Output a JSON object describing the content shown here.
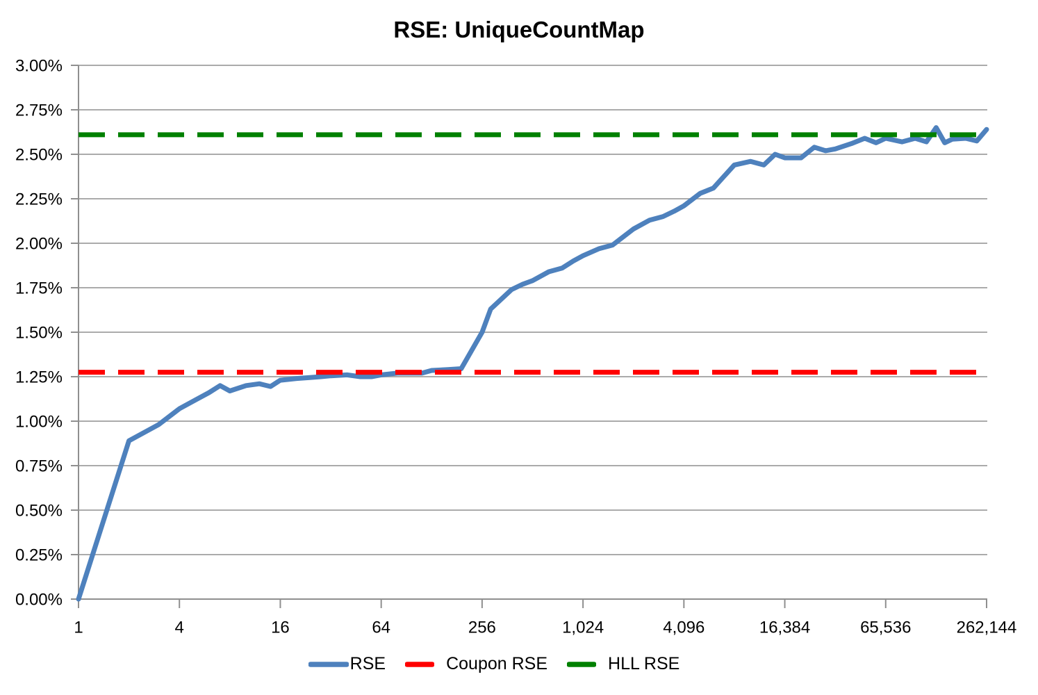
{
  "title": "RSE: UniqueCountMap",
  "colors": {
    "rse_blue": "#4E81BD",
    "coupon_red": "#FF0000",
    "hll_green": "#008000",
    "gridline": "#ABABAB",
    "axis": "#8F8F8F",
    "text": "#000000",
    "background": "#FFFFFF"
  },
  "chart_data": {
    "type": "line",
    "title": "RSE: UniqueCountMap",
    "x_scale": "log",
    "grid": "horizontal",
    "legend_position": "bottom",
    "xlim": [
      1,
      262144
    ],
    "ylim": [
      0,
      3.0
    ],
    "x_ticks": {
      "values": [
        1,
        4,
        16,
        64,
        256,
        1024,
        4096,
        16384,
        65536,
        262144
      ],
      "labels": [
        "1",
        "4",
        "16",
        "64",
        "256",
        "1,024",
        "4,096",
        "16,384",
        "65,536",
        "262,144"
      ]
    },
    "y_axis": {
      "min": 0,
      "max": 3.0,
      "step": 0.25,
      "tick_labels": [
        "0.00%",
        "0.25%",
        "0.50%",
        "0.75%",
        "1.00%",
        "1.25%",
        "1.50%",
        "1.75%",
        "2.00%",
        "2.25%",
        "2.50%",
        "2.75%",
        "3.00%"
      ]
    },
    "series": [
      {
        "name": "RSE",
        "kind": "line",
        "style": "solid",
        "color": "#4E81BD",
        "points": [
          [
            1,
            0.0
          ],
          [
            2,
            0.89
          ],
          [
            3,
            0.98
          ],
          [
            4,
            1.07
          ],
          [
            5,
            1.12
          ],
          [
            6,
            1.16
          ],
          [
            7,
            1.2
          ],
          [
            8,
            1.17
          ],
          [
            10,
            1.2
          ],
          [
            12,
            1.21
          ],
          [
            14,
            1.195
          ],
          [
            16,
            1.23
          ],
          [
            20,
            1.24
          ],
          [
            24,
            1.245
          ],
          [
            28,
            1.25
          ],
          [
            32,
            1.255
          ],
          [
            40,
            1.26
          ],
          [
            48,
            1.25
          ],
          [
            56,
            1.25
          ],
          [
            64,
            1.26
          ],
          [
            80,
            1.27
          ],
          [
            96,
            1.27
          ],
          [
            112,
            1.27
          ],
          [
            128,
            1.285
          ],
          [
            160,
            1.29
          ],
          [
            192,
            1.295
          ],
          [
            256,
            1.5
          ],
          [
            288,
            1.63
          ],
          [
            384,
            1.74
          ],
          [
            448,
            1.77
          ],
          [
            512,
            1.79
          ],
          [
            640,
            1.84
          ],
          [
            768,
            1.86
          ],
          [
            896,
            1.9
          ],
          [
            1024,
            1.93
          ],
          [
            1280,
            1.97
          ],
          [
            1536,
            1.99
          ],
          [
            2048,
            2.08
          ],
          [
            2560,
            2.13
          ],
          [
            3072,
            2.15
          ],
          [
            3584,
            2.18
          ],
          [
            4096,
            2.21
          ],
          [
            5120,
            2.28
          ],
          [
            6144,
            2.31
          ],
          [
            7168,
            2.38
          ],
          [
            8192,
            2.44
          ],
          [
            10240,
            2.46
          ],
          [
            12288,
            2.44
          ],
          [
            14336,
            2.5
          ],
          [
            16384,
            2.48
          ],
          [
            20480,
            2.48
          ],
          [
            24576,
            2.54
          ],
          [
            28672,
            2.52
          ],
          [
            32768,
            2.53
          ],
          [
            40960,
            2.56
          ],
          [
            49152,
            2.59
          ],
          [
            57344,
            2.565
          ],
          [
            65536,
            2.59
          ],
          [
            81920,
            2.57
          ],
          [
            98304,
            2.59
          ],
          [
            114688,
            2.57
          ],
          [
            131072,
            2.65
          ],
          [
            147456,
            2.565
          ],
          [
            163840,
            2.585
          ],
          [
            196608,
            2.59
          ],
          [
            229376,
            2.575
          ],
          [
            262144,
            2.64
          ]
        ]
      },
      {
        "name": "Coupon RSE",
        "kind": "hline",
        "style": "dashed",
        "color": "#FF0000",
        "value": 1.275
      },
      {
        "name": "HLL RSE",
        "kind": "hline",
        "style": "dashed",
        "color": "#008000",
        "value": 2.61
      }
    ]
  }
}
